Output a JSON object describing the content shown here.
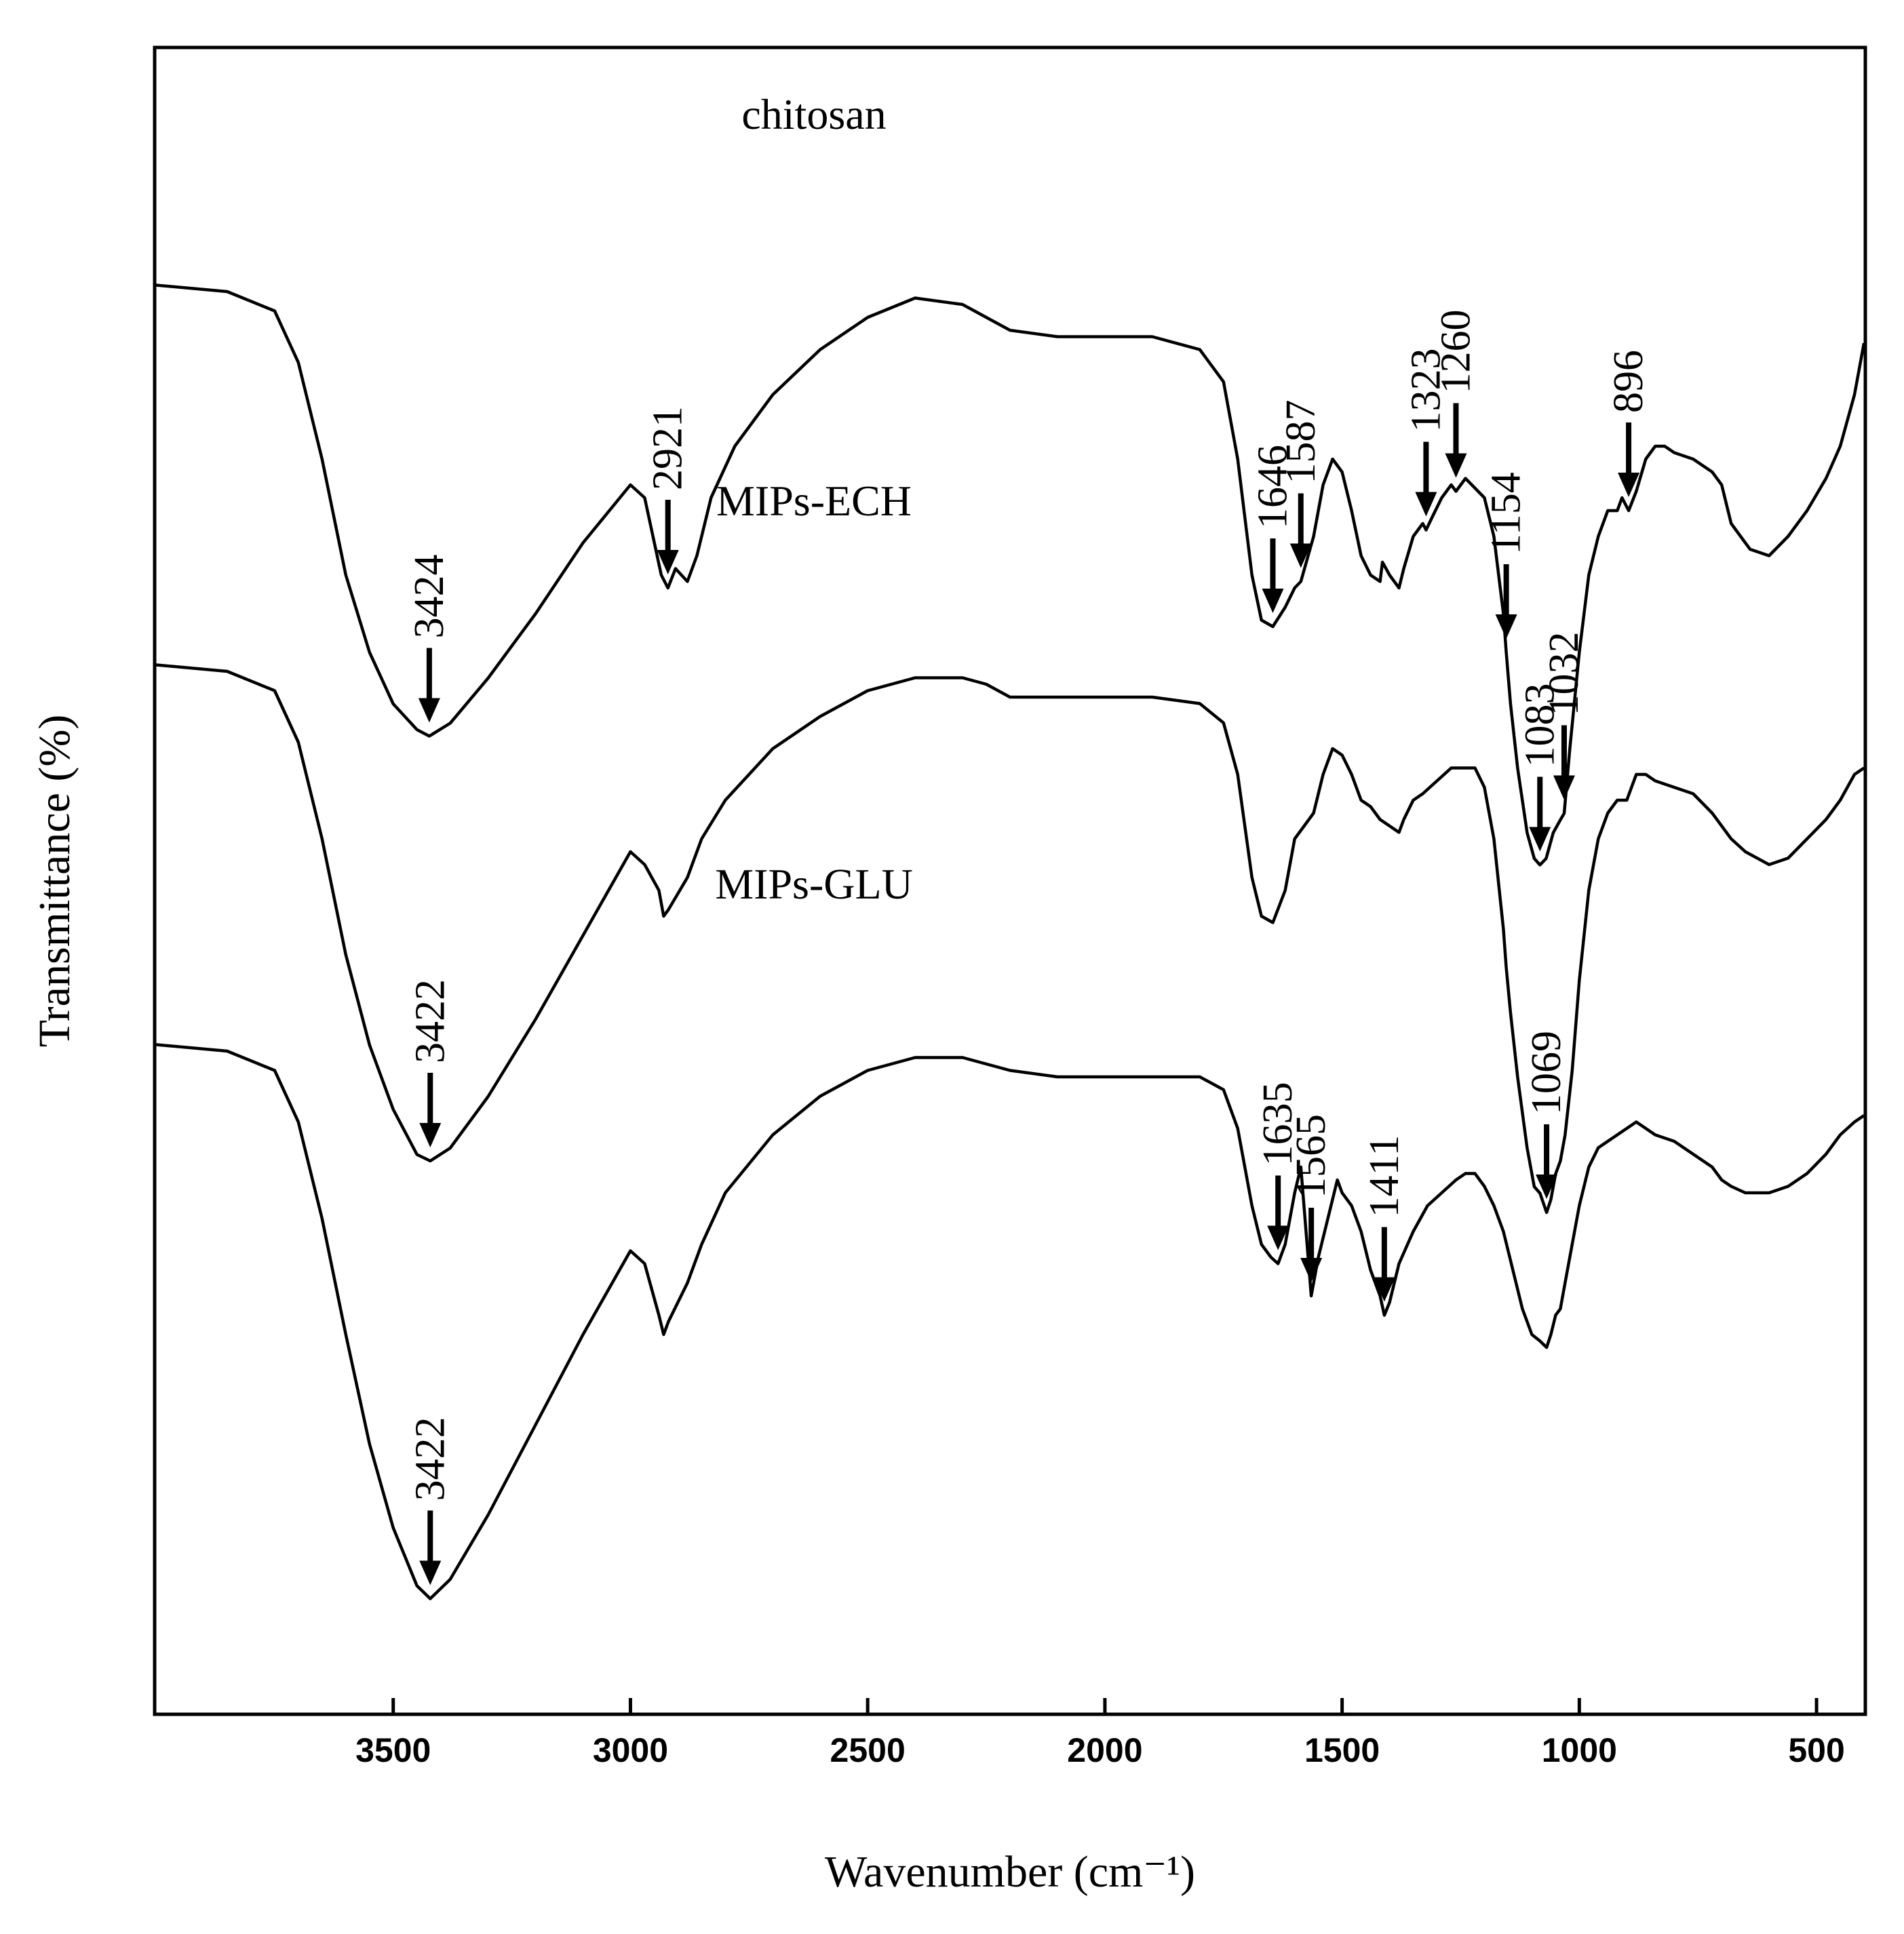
{
  "chart_data": {
    "type": "line",
    "title": "",
    "xlabel": "Wavenumber (cm⁻¹)",
    "ylabel": "Transmittance (%)",
    "xlim": [
      4000,
      400
    ],
    "x_reversed": true,
    "y_ticks_shown": false,
    "xticks": [
      3500,
      3000,
      2500,
      2000,
      1500,
      1000,
      500
    ],
    "series": [
      {
        "name": "chitosan",
        "label": "chitosan",
        "offset": 2,
        "points": [
          [
            4000,
            97
          ],
          [
            3850,
            96
          ],
          [
            3750,
            93
          ],
          [
            3700,
            85
          ],
          [
            3650,
            70
          ],
          [
            3600,
            52
          ],
          [
            3550,
            40
          ],
          [
            3500,
            32
          ],
          [
            3450,
            28
          ],
          [
            3424,
            27
          ],
          [
            3380,
            29
          ],
          [
            3300,
            36
          ],
          [
            3200,
            46
          ],
          [
            3100,
            57
          ],
          [
            3000,
            66
          ],
          [
            2970,
            64
          ],
          [
            2935,
            52
          ],
          [
            2921,
            50
          ],
          [
            2905,
            53
          ],
          [
            2880,
            51
          ],
          [
            2860,
            55
          ],
          [
            2830,
            64
          ],
          [
            2780,
            72
          ],
          [
            2700,
            80
          ],
          [
            2600,
            87
          ],
          [
            2500,
            92
          ],
          [
            2400,
            95
          ],
          [
            2300,
            94
          ],
          [
            2250,
            92
          ],
          [
            2200,
            90
          ],
          [
            2100,
            89
          ],
          [
            2000,
            89
          ],
          [
            1900,
            89
          ],
          [
            1800,
            87
          ],
          [
            1750,
            82
          ],
          [
            1720,
            70
          ],
          [
            1690,
            52
          ],
          [
            1670,
            45
          ],
          [
            1646,
            44
          ],
          [
            1620,
            47
          ],
          [
            1600,
            50
          ],
          [
            1587,
            51
          ],
          [
            1560,
            58
          ],
          [
            1540,
            66
          ],
          [
            1520,
            70
          ],
          [
            1500,
            68
          ],
          [
            1480,
            62
          ],
          [
            1460,
            55
          ],
          [
            1440,
            52
          ],
          [
            1420,
            51
          ],
          [
            1415,
            54
          ],
          [
            1400,
            52
          ],
          [
            1380,
            50
          ],
          [
            1370,
            53
          ],
          [
            1350,
            58
          ],
          [
            1330,
            60
          ],
          [
            1323,
            59
          ],
          [
            1310,
            61
          ],
          [
            1290,
            64
          ],
          [
            1270,
            66
          ],
          [
            1260,
            65
          ],
          [
            1240,
            67
          ],
          [
            1200,
            64
          ],
          [
            1180,
            58
          ],
          [
            1160,
            46
          ],
          [
            1154,
            40
          ],
          [
            1145,
            32
          ],
          [
            1130,
            22
          ],
          [
            1110,
            12
          ],
          [
            1095,
            8
          ],
          [
            1083,
            7
          ],
          [
            1070,
            8
          ],
          [
            1055,
            12
          ],
          [
            1040,
            14
          ],
          [
            1032,
            15
          ],
          [
            1020,
            25
          ],
          [
            1000,
            40
          ],
          [
            980,
            52
          ],
          [
            960,
            58
          ],
          [
            940,
            62
          ],
          [
            920,
            62
          ],
          [
            910,
            64
          ],
          [
            896,
            62
          ],
          [
            880,
            65
          ],
          [
            860,
            70
          ],
          [
            840,
            72
          ],
          [
            820,
            72
          ],
          [
            800,
            71
          ],
          [
            760,
            70
          ],
          [
            720,
            68
          ],
          [
            700,
            66
          ],
          [
            680,
            60
          ],
          [
            660,
            58
          ],
          [
            640,
            56
          ],
          [
            600,
            55
          ],
          [
            560,
            58
          ],
          [
            520,
            62
          ],
          [
            480,
            67
          ],
          [
            450,
            72
          ],
          [
            420,
            80
          ],
          [
            400,
            88
          ]
        ]
      },
      {
        "name": "MIPs-ECH",
        "label": "MIPs-ECH",
        "offset": 1,
        "points": [
          [
            4000,
            97
          ],
          [
            3850,
            96
          ],
          [
            3750,
            93
          ],
          [
            3700,
            85
          ],
          [
            3650,
            70
          ],
          [
            3600,
            52
          ],
          [
            3550,
            38
          ],
          [
            3500,
            28
          ],
          [
            3450,
            21
          ],
          [
            3422,
            20
          ],
          [
            3380,
            22
          ],
          [
            3300,
            30
          ],
          [
            3200,
            42
          ],
          [
            3100,
            55
          ],
          [
            3000,
            68
          ],
          [
            2970,
            66
          ],
          [
            2940,
            62
          ],
          [
            2930,
            58
          ],
          [
            2920,
            59
          ],
          [
            2880,
            64
          ],
          [
            2850,
            70
          ],
          [
            2800,
            76
          ],
          [
            2700,
            84
          ],
          [
            2600,
            89
          ],
          [
            2500,
            93
          ],
          [
            2400,
            95
          ],
          [
            2300,
            95
          ],
          [
            2250,
            94
          ],
          [
            2200,
            92
          ],
          [
            2100,
            92
          ],
          [
            2000,
            92
          ],
          [
            1900,
            92
          ],
          [
            1800,
            91
          ],
          [
            1750,
            88
          ],
          [
            1720,
            80
          ],
          [
            1690,
            64
          ],
          [
            1670,
            58
          ],
          [
            1646,
            57
          ],
          [
            1620,
            62
          ],
          [
            1600,
            70
          ],
          [
            1580,
            72
          ],
          [
            1560,
            74
          ],
          [
            1540,
            80
          ],
          [
            1520,
            84
          ],
          [
            1500,
            83
          ],
          [
            1480,
            80
          ],
          [
            1460,
            76
          ],
          [
            1440,
            75
          ],
          [
            1420,
            73
          ],
          [
            1400,
            72
          ],
          [
            1380,
            71
          ],
          [
            1370,
            73
          ],
          [
            1350,
            76
          ],
          [
            1330,
            77
          ],
          [
            1300,
            79
          ],
          [
            1270,
            81
          ],
          [
            1250,
            81
          ],
          [
            1220,
            81
          ],
          [
            1200,
            78
          ],
          [
            1180,
            70
          ],
          [
            1160,
            56
          ],
          [
            1154,
            50
          ],
          [
            1145,
            43
          ],
          [
            1130,
            33
          ],
          [
            1110,
            22
          ],
          [
            1095,
            16
          ],
          [
            1083,
            15
          ],
          [
            1069,
            12
          ],
          [
            1060,
            14
          ],
          [
            1050,
            18
          ],
          [
            1040,
            20
          ],
          [
            1030,
            24
          ],
          [
            1015,
            34
          ],
          [
            1000,
            48
          ],
          [
            980,
            62
          ],
          [
            960,
            70
          ],
          [
            940,
            74
          ],
          [
            920,
            76
          ],
          [
            900,
            76
          ],
          [
            880,
            80
          ],
          [
            860,
            80
          ],
          [
            840,
            79
          ],
          [
            800,
            78
          ],
          [
            760,
            77
          ],
          [
            720,
            74
          ],
          [
            700,
            72
          ],
          [
            680,
            70
          ],
          [
            650,
            68
          ],
          [
            600,
            66
          ],
          [
            560,
            67
          ],
          [
            520,
            70
          ],
          [
            480,
            73
          ],
          [
            450,
            76
          ],
          [
            420,
            80
          ],
          [
            400,
            81
          ]
        ]
      },
      {
        "name": "MIPs-GLU",
        "label": "MIPs-GLU",
        "offset": 0,
        "points": [
          [
            4000,
            97
          ],
          [
            3850,
            96
          ],
          [
            3750,
            93
          ],
          [
            3700,
            85
          ],
          [
            3650,
            70
          ],
          [
            3600,
            52
          ],
          [
            3550,
            35
          ],
          [
            3500,
            22
          ],
          [
            3450,
            13
          ],
          [
            3422,
            11
          ],
          [
            3380,
            14
          ],
          [
            3300,
            24
          ],
          [
            3200,
            38
          ],
          [
            3100,
            52
          ],
          [
            3000,
            65
          ],
          [
            2970,
            63
          ],
          [
            2940,
            55
          ],
          [
            2930,
            52
          ],
          [
            2920,
            54
          ],
          [
            2880,
            60
          ],
          [
            2850,
            66
          ],
          [
            2800,
            74
          ],
          [
            2700,
            83
          ],
          [
            2600,
            89
          ],
          [
            2500,
            93
          ],
          [
            2400,
            95
          ],
          [
            2300,
            95
          ],
          [
            2250,
            94
          ],
          [
            2200,
            93
          ],
          [
            2100,
            92
          ],
          [
            2000,
            92
          ],
          [
            1900,
            92
          ],
          [
            1800,
            92
          ],
          [
            1750,
            90
          ],
          [
            1720,
            84
          ],
          [
            1690,
            72
          ],
          [
            1670,
            66
          ],
          [
            1650,
            64
          ],
          [
            1635,
            63
          ],
          [
            1620,
            66
          ],
          [
            1600,
            74
          ],
          [
            1587,
            78
          ],
          [
            1565,
            58
          ],
          [
            1550,
            64
          ],
          [
            1530,
            70
          ],
          [
            1510,
            76
          ],
          [
            1500,
            74
          ],
          [
            1480,
            72
          ],
          [
            1460,
            68
          ],
          [
            1440,
            62
          ],
          [
            1420,
            58
          ],
          [
            1411,
            55
          ],
          [
            1400,
            57
          ],
          [
            1380,
            63
          ],
          [
            1350,
            68
          ],
          [
            1320,
            72
          ],
          [
            1290,
            74
          ],
          [
            1260,
            76
          ],
          [
            1240,
            77
          ],
          [
            1220,
            77
          ],
          [
            1200,
            75
          ],
          [
            1180,
            72
          ],
          [
            1160,
            68
          ],
          [
            1140,
            62
          ],
          [
            1120,
            56
          ],
          [
            1100,
            52
          ],
          [
            1083,
            51
          ],
          [
            1069,
            50
          ],
          [
            1060,
            52
          ],
          [
            1050,
            55
          ],
          [
            1040,
            56
          ],
          [
            1030,
            60
          ],
          [
            1015,
            66
          ],
          [
            1000,
            72
          ],
          [
            980,
            78
          ],
          [
            960,
            81
          ],
          [
            940,
            82
          ],
          [
            920,
            83
          ],
          [
            900,
            84
          ],
          [
            880,
            85
          ],
          [
            860,
            84
          ],
          [
            840,
            83
          ],
          [
            800,
            82
          ],
          [
            760,
            80
          ],
          [
            720,
            78
          ],
          [
            700,
            76
          ],
          [
            680,
            75
          ],
          [
            650,
            74
          ],
          [
            600,
            74
          ],
          [
            560,
            75
          ],
          [
            520,
            77
          ],
          [
            480,
            80
          ],
          [
            450,
            83
          ],
          [
            420,
            85
          ],
          [
            400,
            86
          ]
        ]
      }
    ],
    "annotations": [
      {
        "label": "chitosan",
        "text": "3424",
        "x": 3424,
        "series": "chitosan"
      },
      {
        "label": "chitosan",
        "text": "2921",
        "x": 2921,
        "series": "chitosan"
      },
      {
        "label": "chitosan",
        "text": "1646",
        "x": 1646,
        "series": "chitosan"
      },
      {
        "label": "chitosan",
        "text": "1587",
        "x": 1587,
        "series": "chitosan"
      },
      {
        "label": "chitosan",
        "text": "1323",
        "x": 1323,
        "series": "chitosan"
      },
      {
        "label": "chitosan",
        "text": "1260",
        "x": 1260,
        "series": "chitosan"
      },
      {
        "label": "chitosan",
        "text": "1154",
        "x": 1154,
        "series": "chitosan"
      },
      {
        "label": "chitosan",
        "text": "1083",
        "x": 1083,
        "series": "chitosan"
      },
      {
        "label": "chitosan",
        "text": "1032",
        "x": 1032,
        "series": "chitosan"
      },
      {
        "label": "chitosan",
        "text": "896",
        "x": 896,
        "series": "chitosan"
      },
      {
        "label": "MIPs-ECH",
        "text": "3422",
        "x": 3422,
        "series": "MIPs-ECH"
      },
      {
        "label": "MIPs-ECH",
        "text": "1069",
        "x": 1069,
        "series": "MIPs-ECH"
      },
      {
        "label": "MIPs-GLU",
        "text": "3422",
        "x": 3422,
        "series": "MIPs-GLU"
      },
      {
        "label": "MIPs-GLU",
        "text": "1635",
        "x": 1635,
        "series": "MIPs-GLU"
      },
      {
        "label": "MIPs-GLU",
        "text": "1565",
        "x": 1565,
        "series": "MIPs-GLU"
      },
      {
        "label": "MIPs-GLU",
        "text": "1411",
        "x": 1411,
        "series": "MIPs-GLU"
      }
    ]
  }
}
